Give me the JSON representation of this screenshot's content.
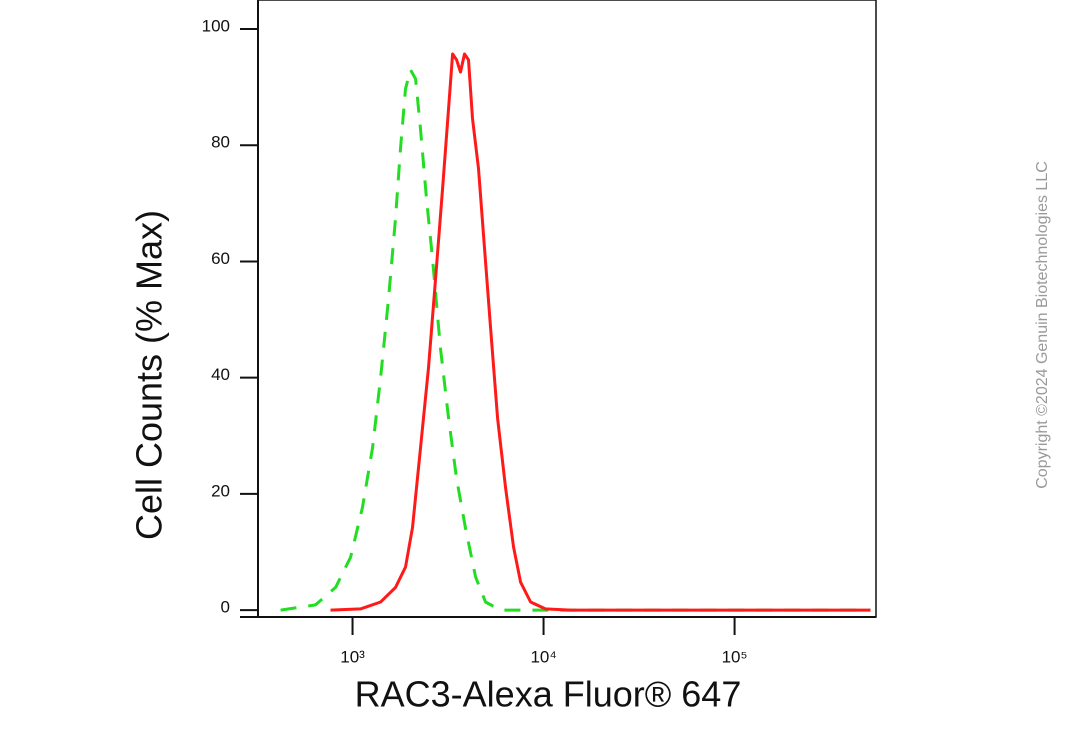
{
  "chart_data": {
    "type": "line",
    "x_label": "RAC3-Alexa Fluor® 647",
    "y_label": "Cell Counts (% Max)",
    "copyright": "Copyright ©2024 Genuin Biotechnologies LLC",
    "xlog": true,
    "xlim": [
      320,
      550000
    ],
    "ylim": [
      -0.5,
      105
    ],
    "xticks": [
      {
        "value": 1000,
        "label": "10³"
      },
      {
        "value": 10000,
        "label": "10⁴"
      },
      {
        "value": 100000,
        "label": "10⁵"
      }
    ],
    "yticks": [
      0,
      20,
      40,
      60,
      80,
      100
    ],
    "series": [
      {
        "color": "#22dd22",
        "dashed": true,
        "x": [
          420,
          640,
          815,
          977,
          1128,
          1273,
          1403,
          1543,
          1679,
          1783,
          1893,
          2012,
          2138,
          2270,
          2440,
          2622,
          2889,
          3183,
          3506,
          3908,
          4406,
          4968,
          5953,
          515000
        ],
        "values": [
          0,
          0.9,
          3.9,
          9.1,
          17.7,
          28,
          40,
          53.5,
          67.4,
          79.4,
          89.7,
          93,
          91.4,
          82.8,
          70.8,
          60.5,
          45,
          33,
          22.6,
          14,
          5.7,
          1.4,
          0,
          0
        ]
      },
      {
        "color": "#ff1a1a",
        "dashed": false,
        "x": [
          767,
          1101,
          1403,
          1679,
          1893,
          2060,
          2270,
          2500,
          2722,
          2961,
          3183,
          3342,
          3506,
          3676,
          3857,
          4045,
          4245,
          4566,
          4910,
          5280,
          5748,
          6329,
          6966,
          7580,
          8552,
          10230,
          13840,
          515000
        ],
        "values": [
          0,
          0.2,
          1.4,
          3.9,
          7.4,
          14.2,
          27.9,
          41.7,
          57.1,
          72.6,
          86.4,
          95.7,
          94.7,
          92.6,
          95.7,
          94.7,
          84.6,
          76,
          62.3,
          48.5,
          33,
          21,
          10.8,
          4.8,
          1.4,
          0.2,
          0,
          0
        ]
      }
    ]
  }
}
